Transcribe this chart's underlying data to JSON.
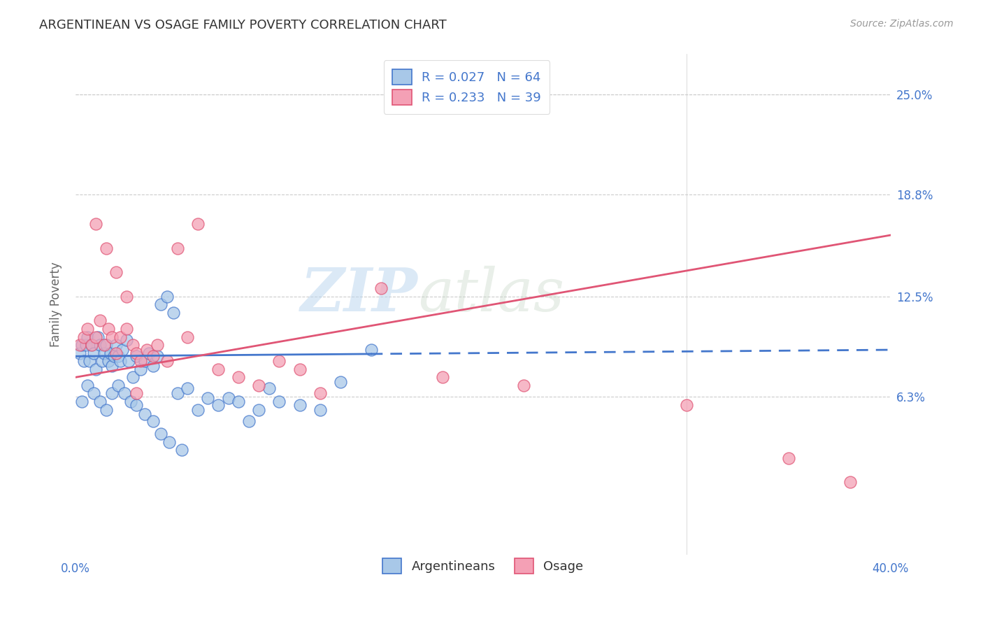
{
  "title": "ARGENTINEAN VS OSAGE FAMILY POVERTY CORRELATION CHART",
  "source": "Source: ZipAtlas.com",
  "ylabel": "Family Poverty",
  "ytick_labels": [
    "25.0%",
    "18.8%",
    "12.5%",
    "6.3%"
  ],
  "ytick_values": [
    0.25,
    0.188,
    0.125,
    0.063
  ],
  "xlim": [
    0.0,
    0.4
  ],
  "ylim": [
    -0.035,
    0.275
  ],
  "legend_r1": "R = 0.027   N = 64",
  "legend_r2": "R = 0.233   N = 39",
  "color_argentinean": "#a8c8e8",
  "color_osage": "#f4a0b5",
  "color_line_argentinean": "#4477cc",
  "color_line_osage": "#e05575",
  "watermark_zip": "ZIP",
  "watermark_atlas": "atlas",
  "argentinean_scatter_x": [
    0.002,
    0.003,
    0.004,
    0.005,
    0.006,
    0.007,
    0.008,
    0.009,
    0.01,
    0.011,
    0.012,
    0.013,
    0.014,
    0.015,
    0.016,
    0.017,
    0.018,
    0.019,
    0.02,
    0.021,
    0.022,
    0.023,
    0.025,
    0.026,
    0.028,
    0.03,
    0.032,
    0.034,
    0.036,
    0.038,
    0.04,
    0.042,
    0.045,
    0.048,
    0.05,
    0.055,
    0.06,
    0.065,
    0.07,
    0.075,
    0.08,
    0.085,
    0.09,
    0.095,
    0.1,
    0.11,
    0.12,
    0.13,
    0.003,
    0.006,
    0.009,
    0.012,
    0.015,
    0.018,
    0.021,
    0.024,
    0.027,
    0.03,
    0.034,
    0.038,
    0.042,
    0.046,
    0.052,
    0.145
  ],
  "argentinean_scatter_y": [
    0.09,
    0.095,
    0.085,
    0.095,
    0.1,
    0.085,
    0.095,
    0.09,
    0.08,
    0.1,
    0.095,
    0.085,
    0.09,
    0.095,
    0.085,
    0.09,
    0.082,
    0.088,
    0.095,
    0.088,
    0.085,
    0.092,
    0.098,
    0.085,
    0.075,
    0.088,
    0.08,
    0.085,
    0.09,
    0.082,
    0.088,
    0.12,
    0.125,
    0.115,
    0.065,
    0.068,
    0.055,
    0.062,
    0.058,
    0.062,
    0.06,
    0.048,
    0.055,
    0.068,
    0.06,
    0.058,
    0.055,
    0.072,
    0.06,
    0.07,
    0.065,
    0.06,
    0.055,
    0.065,
    0.07,
    0.065,
    0.06,
    0.058,
    0.052,
    0.048,
    0.04,
    0.035,
    0.03,
    0.092
  ],
  "osage_scatter_x": [
    0.002,
    0.004,
    0.006,
    0.008,
    0.01,
    0.012,
    0.014,
    0.016,
    0.018,
    0.02,
    0.022,
    0.025,
    0.028,
    0.03,
    0.032,
    0.035,
    0.038,
    0.04,
    0.045,
    0.05,
    0.055,
    0.06,
    0.07,
    0.08,
    0.09,
    0.1,
    0.11,
    0.12,
    0.15,
    0.18,
    0.22,
    0.3,
    0.35,
    0.38,
    0.01,
    0.015,
    0.02,
    0.025,
    0.03
  ],
  "osage_scatter_y": [
    0.095,
    0.1,
    0.105,
    0.095,
    0.1,
    0.11,
    0.095,
    0.105,
    0.1,
    0.09,
    0.1,
    0.105,
    0.095,
    0.09,
    0.085,
    0.092,
    0.088,
    0.095,
    0.085,
    0.155,
    0.1,
    0.17,
    0.08,
    0.075,
    0.07,
    0.085,
    0.08,
    0.065,
    0.13,
    0.075,
    0.07,
    0.058,
    0.025,
    0.01,
    0.17,
    0.155,
    0.14,
    0.125,
    0.065
  ],
  "arg_line_x0": 0.0,
  "arg_line_x_solid_end": 0.145,
  "arg_line_x1": 0.4,
  "arg_line_y_intercept": 0.088,
  "arg_line_slope": 0.01,
  "osage_line_y_intercept": 0.075,
  "osage_line_slope": 0.22
}
